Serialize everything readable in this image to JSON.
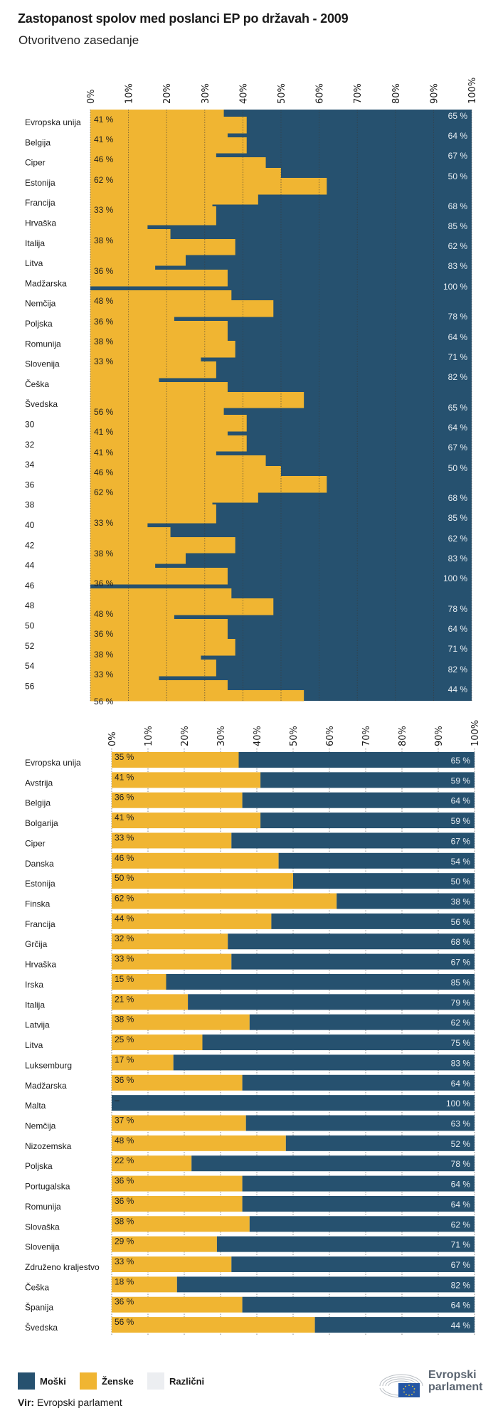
{
  "header": {
    "title": "Zastopanost spolov med poslanci EP po državah - 2009",
    "subtitle": "Otvoritveno zasedanje"
  },
  "colors": {
    "men": "#26516f",
    "women": "#f0b532",
    "other": "#eceef1"
  },
  "legend": {
    "men": "Moški",
    "women": "Ženske",
    "other": "Različni"
  },
  "source": {
    "label": "Vir:",
    "text": "Evropski parlament"
  },
  "logo": {
    "line1": "Evropski",
    "line2": "parlament"
  },
  "chart_data": [
    {
      "type": "bar",
      "stacked": true,
      "orientation": "horizontal",
      "note": "glitched render of the same dataset, displayed as stepped overlapping bands",
      "xlim": [
        0,
        100
      ],
      "xticks": [
        "0%",
        "10%",
        "20%",
        "30%",
        "40%",
        "50%",
        "60%",
        "70%",
        "80%",
        "90%",
        "100%"
      ],
      "grid": true,
      "categories": [
        "Evropska unija",
        "Belgija",
        "Ciper",
        "Estonija",
        "Francija",
        "Hrvaška",
        "Italija",
        "Litva",
        "Madžarska",
        "Nemčija",
        "Poljska",
        "Romunija",
        "Slovenija",
        "Češka",
        "Švedska",
        "30",
        "32",
        "34",
        "36",
        "38",
        "40",
        "42",
        "44",
        "46",
        "48",
        "50",
        "52",
        "54",
        "56"
      ],
      "women_bands": [
        35,
        41,
        36,
        41,
        33,
        46,
        50,
        62,
        44,
        32,
        33,
        15,
        21,
        38,
        25,
        17,
        36,
        0,
        37,
        48,
        22,
        36,
        38,
        29,
        33,
        18,
        36,
        56,
        35,
        41,
        36,
        41,
        33,
        46,
        50,
        62,
        44,
        32,
        33,
        15,
        21,
        38,
        25,
        17,
        36,
        0,
        37,
        48,
        22,
        36,
        38,
        29,
        33,
        18,
        36,
        56
      ],
      "women_labels": [
        "41 %",
        "41 %",
        "46 %",
        "62 %",
        "33 %",
        "38 %",
        "36 %",
        "48 %",
        "36 %",
        "38 %",
        "33 %",
        "56 %",
        "41 %",
        "41 %",
        "46 %",
        "62 %",
        "33 %",
        "38 %",
        "36 %",
        "48 %",
        "36 %",
        "38 %",
        "33 %",
        "56 %"
      ],
      "men_labels": [
        "65 %",
        "64 %",
        "67 %",
        "50 %",
        "68 %",
        "85 %",
        "62 %",
        "83 %",
        "100 %",
        "78 %",
        "64 %",
        "71 %",
        "82 %",
        "65 %",
        "64 %",
        "67 %",
        "50 %",
        "68 %",
        "85 %",
        "62 %",
        "83 %",
        "100 %",
        "78 %",
        "64 %",
        "71 %",
        "82 %",
        "44 %"
      ]
    },
    {
      "type": "bar",
      "stacked": true,
      "orientation": "horizontal",
      "xlim": [
        0,
        100
      ],
      "xticks": [
        "0%",
        "10%",
        "20%",
        "30%",
        "40%",
        "50%",
        "60%",
        "70%",
        "80%",
        "90%",
        "100%"
      ],
      "grid": true,
      "categories": [
        "Evropska unija",
        "Avstrija",
        "Belgija",
        "Bolgarija",
        "Ciper",
        "Danska",
        "Estonija",
        "Finska",
        "Francija",
        "Grčija",
        "Hrvaška",
        "Irska",
        "Italija",
        "Latvija",
        "Litva",
        "Luksemburg",
        "Madžarska",
        "Malta",
        "Nemčija",
        "Nizozemska",
        "Poljska",
        "Portugalska",
        "Romunija",
        "Slovaška",
        "Slovenija",
        "Združeno kraljestvo",
        "Češka",
        "Španija",
        "Švedska"
      ],
      "series": [
        {
          "name": "Ženske",
          "values": [
            35,
            41,
            36,
            41,
            33,
            46,
            50,
            62,
            44,
            32,
            33,
            15,
            21,
            38,
            25,
            17,
            36,
            0,
            37,
            48,
            22,
            36,
            36,
            38,
            29,
            33,
            18,
            36,
            56
          ],
          "labels": [
            "35 %",
            "41 %",
            "36 %",
            "41 %",
            "33 %",
            "46 %",
            "50 %",
            "62 %",
            "44 %",
            "32 %",
            "33 %",
            "15 %",
            "21 %",
            "38 %",
            "25 %",
            "17 %",
            "36 %",
            "–",
            "37 %",
            "48 %",
            "22 %",
            "36 %",
            "36 %",
            "38 %",
            "29 %",
            "33 %",
            "18 %",
            "36 %",
            "56 %"
          ]
        },
        {
          "name": "Moški",
          "values": [
            65,
            59,
            64,
            59,
            67,
            54,
            50,
            38,
            56,
            68,
            67,
            85,
            79,
            62,
            75,
            83,
            64,
            100,
            63,
            52,
            78,
            64,
            64,
            62,
            71,
            67,
            82,
            64,
            44
          ],
          "labels": [
            "65 %",
            "59 %",
            "64 %",
            "59 %",
            "67 %",
            "54 %",
            "50 %",
            "38 %",
            "56 %",
            "68 %",
            "67 %",
            "85 %",
            "79 %",
            "62 %",
            "75 %",
            "83 %",
            "64 %",
            "100 %",
            "63 %",
            "52 %",
            "78 %",
            "64 %",
            "64 %",
            "62 %",
            "71 %",
            "67 %",
            "82 %",
            "64 %",
            "44 %"
          ]
        }
      ]
    }
  ]
}
